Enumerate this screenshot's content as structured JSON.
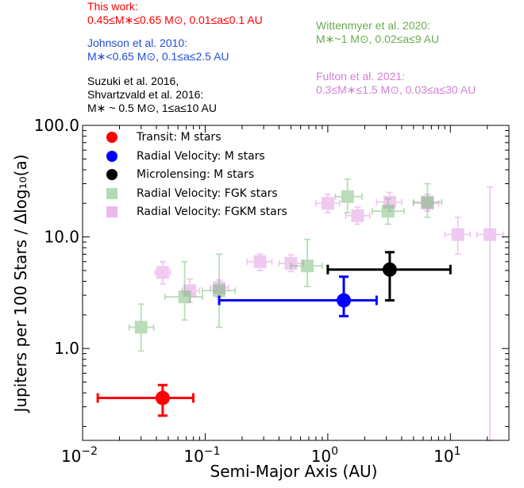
{
  "chart_data": {
    "type": "scatter",
    "xscale": "log",
    "yscale": "log",
    "xlim": [
      0.01,
      30
    ],
    "ylim": [
      0.15,
      100
    ],
    "xlabel": "Semi-Major Axis (AU)",
    "ylabel": "Jupiters per 100 Stars / Δlog₁₀(a)",
    "xticks": [
      {
        "value": 0.01,
        "base": "10",
        "exp": "−2"
      },
      {
        "value": 0.1,
        "base": "10",
        "exp": "−1"
      },
      {
        "value": 1,
        "base": "10",
        "exp": "0"
      },
      {
        "value": 10,
        "base": "10",
        "exp": "1"
      }
    ],
    "yticks": [
      {
        "value": 1,
        "label": "1.0"
      },
      {
        "value": 10,
        "label": "10.0"
      },
      {
        "value": 100,
        "label": "100.0"
      }
    ],
    "legend": [
      {
        "label": "Transit: M stars",
        "color": "#ff0000",
        "marker": "circle"
      },
      {
        "label": "Radial Velocity: M stars",
        "color": "#0000ff",
        "marker": "circle"
      },
      {
        "label": "Microlensing: M stars",
        "color": "#000000",
        "marker": "circle"
      },
      {
        "label": "Radial Velocity: FGK stars",
        "color": "#7dc47d",
        "marker": "square"
      },
      {
        "label": "Radial Velocity: FGKM stars",
        "color": "#e6a0e6",
        "marker": "square"
      }
    ],
    "series": [
      {
        "name": "Radial Velocity: FGKM stars",
        "color": "#dd88dd",
        "marker": "square",
        "points": [
          {
            "x": 0.045,
            "y": 4.8,
            "xlo": 0.039,
            "xhi": 0.052,
            "ylo": 3.8,
            "yhi": 6.0
          },
          {
            "x": 0.075,
            "y": 3.3,
            "xlo": 0.065,
            "xhi": 0.09,
            "ylo": 2.6,
            "yhi": 4.2
          },
          {
            "x": 0.13,
            "y": 3.5,
            "xlo": 0.11,
            "xhi": 0.155,
            "ylo": 2.9,
            "yhi": 4.1
          },
          {
            "x": 0.28,
            "y": 6.0,
            "xlo": 0.22,
            "xhi": 0.35,
            "ylo": 5.0,
            "yhi": 7.0
          },
          {
            "x": 0.5,
            "y": 5.8,
            "xlo": 0.4,
            "xhi": 0.63,
            "ylo": 4.9,
            "yhi": 6.9
          },
          {
            "x": 1.0,
            "y": 20.0,
            "xlo": 0.8,
            "xhi": 1.25,
            "ylo": 16.5,
            "yhi": 24.0
          },
          {
            "x": 1.75,
            "y": 15.5,
            "xlo": 1.4,
            "xhi": 2.2,
            "ylo": 13.0,
            "yhi": 18.5
          },
          {
            "x": 3.2,
            "y": 20.5,
            "xlo": 2.5,
            "xhi": 4.0,
            "ylo": 17.0,
            "yhi": 25.0
          },
          {
            "x": 6.5,
            "y": 20.0,
            "xlo": 5.0,
            "xhi": 8.0,
            "ylo": 17.0,
            "yhi": 24.0
          },
          {
            "x": 11.5,
            "y": 10.5,
            "xlo": 9.0,
            "xhi": 14.5,
            "ylo": 7.0,
            "yhi": 15.0
          },
          {
            "x": 21.0,
            "y": 10.5,
            "xlo": 16.5,
            "xhi": 27.0,
            "ylo": 0.15,
            "yhi": 28.0
          }
        ]
      },
      {
        "name": "Radial Velocity: FGK stars",
        "color": "#66b366",
        "marker": "square",
        "points": [
          {
            "x": 0.03,
            "y": 1.55,
            "xlo": 0.024,
            "xhi": 0.038,
            "ylo": 0.95,
            "yhi": 2.5
          },
          {
            "x": 0.068,
            "y": 2.9,
            "xlo": 0.047,
            "xhi": 0.095,
            "ylo": 1.8,
            "yhi": 6.0
          },
          {
            "x": 0.13,
            "y": 3.3,
            "xlo": 0.095,
            "xhi": 0.175,
            "ylo": 1.55,
            "yhi": 7.0
          },
          {
            "x": 0.68,
            "y": 5.5,
            "xlo": 0.5,
            "xhi": 0.9,
            "ylo": 3.6,
            "yhi": 9.5
          },
          {
            "x": 1.45,
            "y": 23.0,
            "xlo": 1.15,
            "xhi": 1.9,
            "ylo": 16.5,
            "yhi": 33.0
          },
          {
            "x": 3.1,
            "y": 17.0,
            "xlo": 2.3,
            "xhi": 4.2,
            "ylo": 13.0,
            "yhi": 22.0
          },
          {
            "x": 6.5,
            "y": 20.5,
            "xlo": 5.0,
            "xhi": 8.5,
            "ylo": 15.0,
            "yhi": 30.0
          }
        ]
      },
      {
        "name": "Transit: M stars",
        "color": "#ff0000",
        "marker": "circle",
        "points": [
          {
            "x": 0.045,
            "y": 0.36,
            "xlo": 0.0133,
            "xhi": 0.08,
            "ylo": 0.25,
            "yhi": 0.47
          }
        ]
      },
      {
        "name": "Radial Velocity: M stars",
        "color": "#0000ff",
        "marker": "circle",
        "points": [
          {
            "x": 1.35,
            "y": 2.7,
            "xlo": 0.13,
            "xhi": 2.5,
            "ylo": 1.95,
            "yhi": 4.4
          }
        ]
      },
      {
        "name": "Microlensing: M stars",
        "color": "#000000",
        "marker": "circle",
        "points": [
          {
            "x": 3.2,
            "y": 5.1,
            "xlo": 1.0,
            "xhi": 10.0,
            "ylo": 2.7,
            "yhi": 7.3
          }
        ]
      }
    ],
    "annotations": [
      {
        "id": "this-work",
        "color": "#ff0000",
        "lines": [
          "This work:",
          "0.45≤M∗≤0.65 M⊙, 0.01≤a≤0.1 AU"
        ]
      },
      {
        "id": "johnson",
        "color": "#1f4fd6",
        "lines": [
          "Johnson et al. 2010:",
          "M∗<0.65 M⊙, 0.1≤a≤2.5 AU"
        ]
      },
      {
        "id": "suzuki",
        "color": "#000000",
        "lines": [
          "Suzuki et al. 2016,",
          "Shvartzvald et al. 2016:",
          "M∗ ~ 0.5 M⊙, 1≤a≤10 AU"
        ]
      },
      {
        "id": "wittenmyer",
        "color": "#6aab50",
        "lines": [
          "Wittenmyer et al. 2020:",
          "M∗~1 M⊙, 0.02≤a≤9 AU"
        ]
      },
      {
        "id": "fulton",
        "color": "#d57fd5",
        "lines": [
          "Fulton et al. 2021:",
          "0.3≤M∗≤1.5 M⊙, 0.03≤a≤30 AU"
        ]
      }
    ]
  }
}
